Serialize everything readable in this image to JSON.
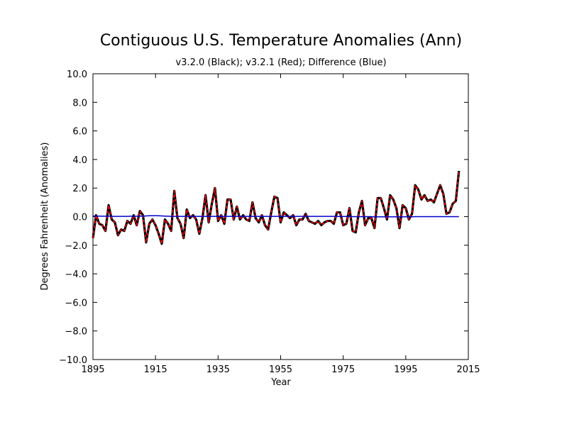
{
  "chart_data": {
    "type": "line",
    "title": "Contiguous U.S. Temperature Anomalies (Ann)",
    "subtitle": "v3.2.0 (Black); v3.2.1 (Red); Difference (Blue)",
    "xlabel": "Year",
    "ylabel": "Degrees Fahrenheit (Anomalies)",
    "xlim": [
      1895,
      2015
    ],
    "ylim": [
      -10,
      10
    ],
    "x_ticks": [
      1895,
      1915,
      1935,
      1955,
      1975,
      1995,
      2015
    ],
    "y_ticks": [
      -10,
      -8,
      -6,
      -4,
      -2,
      0,
      2,
      4,
      6,
      8,
      10
    ],
    "x_tick_labels": [
      "1895",
      "1915",
      "1935",
      "1955",
      "1975",
      "1995",
      "2015"
    ],
    "y_tick_labels": [
      "−10.0",
      "−8.0",
      "−6.0",
      "−4.0",
      "−2.0",
      "0.0",
      "2.0",
      "4.0",
      "6.0",
      "8.0",
      "10.0"
    ],
    "grid": false,
    "x": [
      1895,
      1896,
      1897,
      1898,
      1899,
      1900,
      1901,
      1902,
      1903,
      1904,
      1905,
      1906,
      1907,
      1908,
      1909,
      1910,
      1911,
      1912,
      1913,
      1914,
      1915,
      1916,
      1917,
      1918,
      1919,
      1920,
      1921,
      1922,
      1923,
      1924,
      1925,
      1926,
      1927,
      1928,
      1929,
      1930,
      1931,
      1932,
      1933,
      1934,
      1935,
      1936,
      1937,
      1938,
      1939,
      1940,
      1941,
      1942,
      1943,
      1944,
      1945,
      1946,
      1947,
      1948,
      1949,
      1950,
      1951,
      1952,
      1953,
      1954,
      1955,
      1956,
      1957,
      1958,
      1959,
      1960,
      1961,
      1962,
      1963,
      1964,
      1965,
      1966,
      1967,
      1968,
      1969,
      1970,
      1971,
      1972,
      1973,
      1974,
      1975,
      1976,
      1977,
      1978,
      1979,
      1980,
      1981,
      1982,
      1983,
      1984,
      1985,
      1986,
      1987,
      1988,
      1989,
      1990,
      1991,
      1992,
      1993,
      1994,
      1995,
      1996,
      1997,
      1998,
      1999,
      2000,
      2001,
      2002,
      2003,
      2004,
      2005,
      2006,
      2007,
      2008,
      2009,
      2010,
      2011,
      2012
    ],
    "series": [
      {
        "name": "v3.2.0",
        "color": "#000000",
        "values": [
          -1.5,
          0.1,
          -0.5,
          -0.6,
          -1.0,
          0.8,
          -0.2,
          -0.4,
          -1.3,
          -0.9,
          -1.0,
          -0.3,
          -0.5,
          0.1,
          -0.6,
          0.4,
          0.1,
          -1.8,
          -0.5,
          -0.2,
          -0.6,
          -1.2,
          -1.9,
          -0.2,
          -0.5,
          -1.0,
          1.8,
          -0.1,
          -0.5,
          -1.5,
          0.5,
          -0.1,
          0.1,
          -0.2,
          -1.2,
          -0.1,
          1.5,
          -0.4,
          0.9,
          2.0,
          -0.3,
          0.1,
          -0.5,
          1.2,
          1.2,
          -0.2,
          0.7,
          -0.2,
          0.1,
          -0.2,
          -0.3,
          1.0,
          -0.1,
          -0.4,
          0.1,
          -0.6,
          -0.9,
          0.3,
          1.4,
          1.3,
          -0.4,
          0.3,
          0.1,
          -0.1,
          0.1,
          -0.6,
          -0.2,
          -0.2,
          0.2,
          -0.3,
          -0.4,
          -0.5,
          -0.3,
          -0.6,
          -0.4,
          -0.3,
          -0.3,
          -0.5,
          0.3,
          0.3,
          -0.6,
          -0.5,
          0.6,
          -1.0,
          -1.1,
          0.3,
          1.1,
          -0.6,
          -0.1,
          -0.1,
          -0.8,
          1.3,
          1.3,
          0.6,
          -0.2,
          1.5,
          1.2,
          0.6,
          -0.8,
          0.8,
          0.6,
          -0.2,
          0.2,
          2.2,
          1.9,
          1.2,
          1.5,
          1.1,
          1.2,
          1.0,
          1.6,
          2.2,
          1.6,
          0.2,
          0.3,
          0.9,
          1.1,
          3.2
        ]
      },
      {
        "name": "v3.2.1",
        "color": "#ff0000",
        "values": [
          -1.5,
          0.1,
          -0.5,
          -0.6,
          -1.0,
          0.8,
          -0.2,
          -0.4,
          -1.3,
          -0.9,
          -1.0,
          -0.3,
          -0.5,
          0.1,
          -0.6,
          0.4,
          0.1,
          -1.8,
          -0.5,
          -0.2,
          -0.6,
          -1.2,
          -1.9,
          -0.2,
          -0.5,
          -1.0,
          1.8,
          -0.1,
          -0.5,
          -1.5,
          0.5,
          -0.1,
          0.1,
          -0.2,
          -1.2,
          -0.1,
          1.5,
          -0.4,
          0.9,
          2.0,
          -0.3,
          0.1,
          -0.5,
          1.2,
          1.2,
          -0.2,
          0.7,
          -0.2,
          0.1,
          -0.2,
          -0.3,
          1.0,
          -0.1,
          -0.4,
          0.1,
          -0.6,
          -0.9,
          0.3,
          1.4,
          1.3,
          -0.4,
          0.3,
          0.1,
          -0.1,
          0.1,
          -0.6,
          -0.2,
          -0.2,
          0.2,
          -0.3,
          -0.4,
          -0.5,
          -0.3,
          -0.6,
          -0.4,
          -0.3,
          -0.3,
          -0.5,
          0.3,
          0.3,
          -0.6,
          -0.5,
          0.6,
          -1.0,
          -1.1,
          0.3,
          1.1,
          -0.6,
          -0.1,
          -0.1,
          -0.8,
          1.3,
          1.3,
          0.6,
          -0.2,
          1.5,
          1.2,
          0.6,
          -0.8,
          0.8,
          0.6,
          -0.2,
          0.2,
          2.2,
          1.9,
          1.2,
          1.5,
          1.1,
          1.2,
          1.0,
          1.6,
          2.2,
          1.6,
          0.2,
          0.3,
          0.9,
          1.1,
          3.2
        ]
      },
      {
        "name": "Difference",
        "color": "#0000cc",
        "values": [
          0.05,
          0.04,
          0.04,
          0.03,
          0.03,
          0.03,
          0.02,
          0.02,
          0.02,
          0.02,
          0.02,
          0.02,
          0.03,
          0.03,
          0.03,
          0.04,
          0.04,
          0.05,
          0.06,
          0.07,
          0.07,
          0.06,
          0.05,
          0.04,
          0.03,
          0.02,
          0.02,
          0.02,
          0.02,
          0.02,
          0.02,
          0.02,
          0.02,
          0.02,
          0.02,
          0.02,
          0.02,
          0.02,
          0.02,
          0.02,
          0.02,
          0.02,
          0.02,
          0.02,
          0.02,
          0.02,
          0.02,
          0.02,
          0.02,
          0.02,
          0.02,
          0.02,
          0.02,
          0.02,
          0.02,
          0.02,
          0.02,
          0.02,
          0.02,
          0.02,
          0.02,
          0.02,
          0.02,
          0.02,
          0.02,
          0.02,
          0.02,
          0.02,
          0.02,
          0.02,
          0.02,
          0.02,
          0.02,
          0.02,
          0.02,
          0.02,
          0.02,
          0.02,
          0.01,
          0.01,
          0.01,
          0.01,
          0.01,
          0.0,
          0.0,
          0.0,
          0.0,
          0.0,
          0.0,
          0.0,
          -0.01,
          -0.01,
          -0.01,
          -0.01,
          -0.01,
          -0.01,
          -0.01,
          -0.01,
          -0.01,
          -0.01,
          -0.01,
          -0.01,
          -0.01,
          0.0,
          0.0,
          0.0,
          0.0,
          0.0,
          0.0,
          0.0,
          0.0,
          0.0,
          0.0,
          0.0,
          0.0,
          0.0,
          0.0,
          0.0
        ]
      }
    ]
  }
}
